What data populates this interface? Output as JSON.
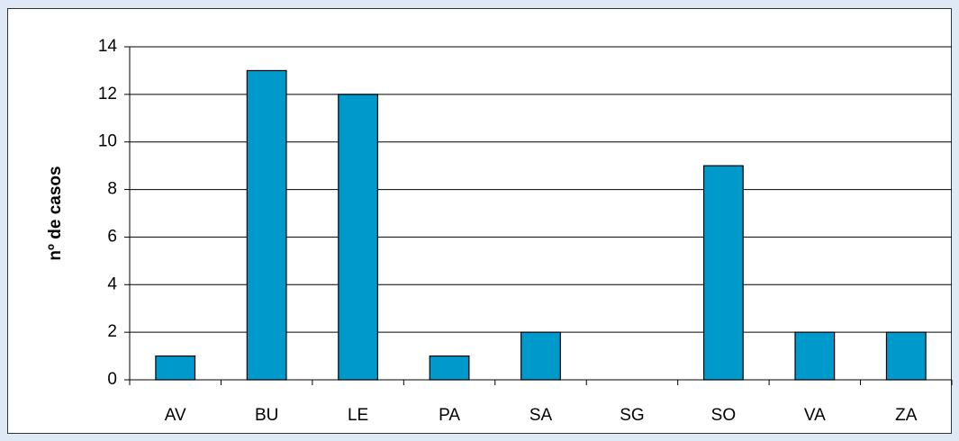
{
  "chart_data": {
    "type": "bar",
    "y_label": "nº de casos",
    "categories": [
      "AV",
      "BU",
      "LE",
      "PA",
      "SA",
      "SG",
      "SO",
      "VA",
      "ZA"
    ],
    "values": [
      1,
      13,
      12,
      1,
      2,
      0,
      9,
      2,
      2
    ],
    "color": "#0099cc",
    "ylim": [
      0,
      14
    ],
    "yticks": [
      0,
      2,
      4,
      6,
      8,
      10,
      12,
      14
    ],
    "grid": true
  }
}
